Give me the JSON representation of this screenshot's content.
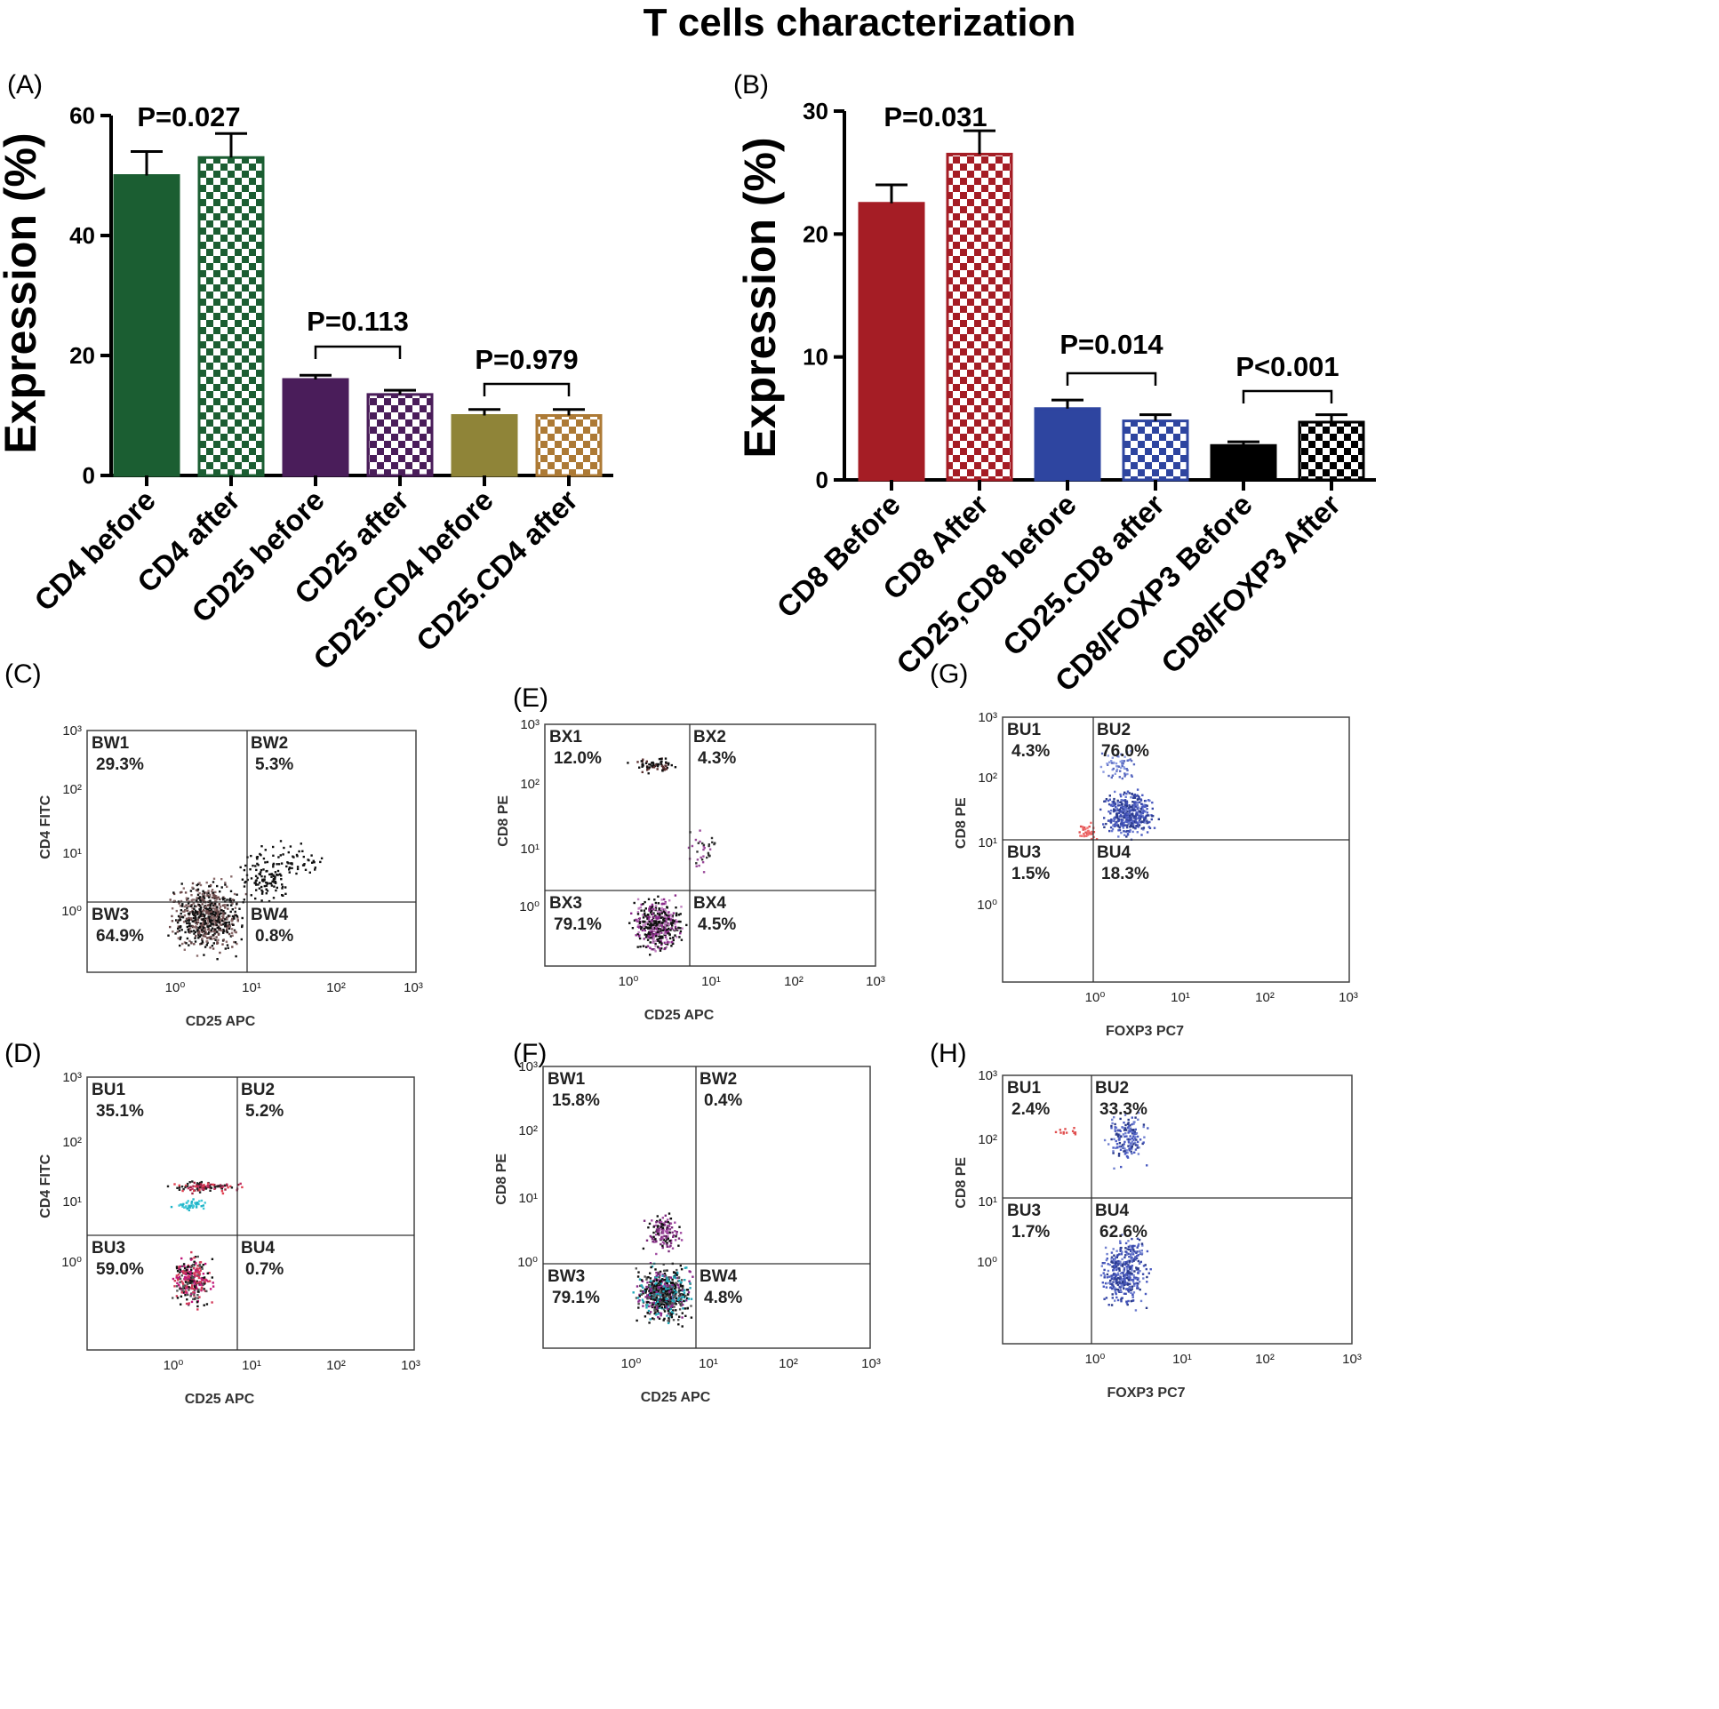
{
  "figure_title": "T cells characterization",
  "panels": [
    {
      "label": "(A)"
    },
    {
      "label": "(B)"
    },
    {
      "label": "(C)"
    },
    {
      "label": "(D)"
    },
    {
      "label": "(E)"
    },
    {
      "label": "(F)"
    },
    {
      "label": "(G)"
    },
    {
      "label": "(H)"
    }
  ],
  "colors": {
    "cd4": "#1b5e32",
    "cd25": "#4a1d5a",
    "cd25cd4_before": "#8f8438",
    "cd25cd4_after": "#ad7a35",
    "cd8": "#a51d25",
    "cd25cd8": "#2e45a0",
    "foxp3": "#000000"
  },
  "chart_data": [
    {
      "panel": "(A)",
      "type": "bar",
      "title": "",
      "ylabel": "Expression (%)",
      "xlabel": "",
      "ylim": [
        0,
        60
      ],
      "yticks": [
        0,
        20,
        40,
        60
      ],
      "categories": [
        "CD4 before",
        "CD4 after",
        "CD25 before",
        "CD25 after",
        "CD25.CD4 before",
        "CD25.CD4 after"
      ],
      "values": [
        50,
        53,
        16,
        13.5,
        10,
        10
      ],
      "errors": [
        4,
        4,
        0.7,
        0.7,
        1,
        1
      ],
      "patterns": [
        "solid",
        "checker",
        "solid",
        "checker",
        "solid",
        "checker"
      ],
      "colors": [
        "#1b5e32",
        "#1b5e32",
        "#4a1d5a",
        "#4a1d5a",
        "#8f8438",
        "#ad7a35"
      ],
      "annotations": [
        {
          "text": "P=0.027",
          "bars": [
            0,
            1
          ],
          "bracket": false
        },
        {
          "text": "P=0.113",
          "bars": [
            2,
            3
          ],
          "bracket": true
        },
        {
          "text": "P=0.979",
          "bars": [
            4,
            5
          ],
          "bracket": true
        }
      ]
    },
    {
      "panel": "(B)",
      "type": "bar",
      "title": "",
      "ylabel": "Expression (%)",
      "xlabel": "",
      "ylim": [
        0,
        30
      ],
      "yticks": [
        0,
        10,
        20,
        30
      ],
      "categories": [
        "CD8 Before",
        "CD8 After",
        "CD25,CD8 before",
        "CD25.CD8 after",
        "CD8/FOXP3 Before",
        "CD8/FOXP3 After"
      ],
      "values": [
        22.5,
        26.5,
        5.8,
        4.8,
        2.8,
        4.7
      ],
      "errors": [
        1.5,
        1.9,
        0.7,
        0.5,
        0.3,
        0.6
      ],
      "patterns": [
        "solid",
        "checker",
        "solid",
        "checker",
        "solid",
        "checker"
      ],
      "colors": [
        "#a51d25",
        "#a51d25",
        "#2e45a0",
        "#2e45a0",
        "#000000",
        "#000000"
      ],
      "annotations": [
        {
          "text": "P=0.031",
          "bars": [
            0,
            1
          ],
          "bracket": false
        },
        {
          "text": "P=0.014",
          "bars": [
            2,
            3
          ],
          "bracket": true
        },
        {
          "text": "P<0.001",
          "bars": [
            4,
            5
          ],
          "bracket": true
        }
      ]
    },
    {
      "panel": "(C)",
      "type": "scatter",
      "xlabel": "CD25 APC",
      "ylabel": "CD4 FITC",
      "xticks": [
        "10⁰",
        "10¹",
        "10²",
        "10³"
      ],
      "yticks": [
        "10⁰",
        "10¹",
        "10²",
        "10³"
      ],
      "quadrants": [
        {
          "name": "BW1",
          "percent": "29.3%"
        },
        {
          "name": "BW2",
          "percent": "5.3%"
        },
        {
          "name": "BW3",
          "percent": "64.9%"
        },
        {
          "name": "BW4",
          "percent": "0.8%"
        }
      ]
    },
    {
      "panel": "(D)",
      "type": "scatter",
      "xlabel": "CD25 APC",
      "ylabel": "CD4 FITC",
      "xticks": [
        "10⁰",
        "10¹",
        "10²",
        "10³"
      ],
      "yticks": [
        "10⁰",
        "10¹",
        "10²",
        "10³"
      ],
      "quadrants": [
        {
          "name": "BU1",
          "percent": "35.1%"
        },
        {
          "name": "BU2",
          "percent": "5.2%"
        },
        {
          "name": "BU3",
          "percent": "59.0%"
        },
        {
          "name": "BU4",
          "percent": "0.7%"
        }
      ]
    },
    {
      "panel": "(E)",
      "type": "scatter",
      "xlabel": "CD25 APC",
      "ylabel": "CD8 PE",
      "xticks": [
        "10⁰",
        "10¹",
        "10²",
        "10³"
      ],
      "yticks": [
        "10⁰",
        "10¹",
        "10²",
        "10³"
      ],
      "quadrants": [
        {
          "name": "BX1",
          "percent": "12.0%"
        },
        {
          "name": "BX2",
          "percent": "4.3%"
        },
        {
          "name": "BX3",
          "percent": "79.1%"
        },
        {
          "name": "BX4",
          "percent": "4.5%"
        }
      ]
    },
    {
      "panel": "(F)",
      "type": "scatter",
      "xlabel": "CD25 APC",
      "ylabel": "CD8 PE",
      "xticks": [
        "10⁰",
        "10¹",
        "10²",
        "10³"
      ],
      "yticks": [
        "10⁰",
        "10¹",
        "10²",
        "10³"
      ],
      "quadrants": [
        {
          "name": "BW1",
          "percent": "15.8%"
        },
        {
          "name": "BW2",
          "percent": "0.4%"
        },
        {
          "name": "BW3",
          "percent": "79.1%"
        },
        {
          "name": "BW4",
          "percent": "4.8%"
        }
      ]
    },
    {
      "panel": "(G)",
      "type": "scatter",
      "xlabel": "FOXP3 PC7",
      "ylabel": "CD8 PE",
      "xticks": [
        "10⁰",
        "10¹",
        "10²",
        "10³"
      ],
      "yticks": [
        "10⁰",
        "10¹",
        "10²",
        "10³"
      ],
      "quadrants": [
        {
          "name": "BU1",
          "percent": "4.3%"
        },
        {
          "name": "BU2",
          "percent": "76.0%"
        },
        {
          "name": "BU3",
          "percent": "1.5%"
        },
        {
          "name": "BU4",
          "percent": "18.3%"
        }
      ]
    },
    {
      "panel": "(H)",
      "type": "scatter",
      "xlabel": "FOXP3 PC7",
      "ylabel": "CD8 PE",
      "xticks": [
        "10⁰",
        "10¹",
        "10²",
        "10³"
      ],
      "yticks": [
        "10⁰",
        "10¹",
        "10²",
        "10³"
      ],
      "quadrants": [
        {
          "name": "BU1",
          "percent": "2.4%"
        },
        {
          "name": "BU2",
          "percent": "33.3%"
        },
        {
          "name": "BU3",
          "percent": "1.7%"
        },
        {
          "name": "BU4",
          "percent": "62.6%"
        }
      ]
    }
  ]
}
